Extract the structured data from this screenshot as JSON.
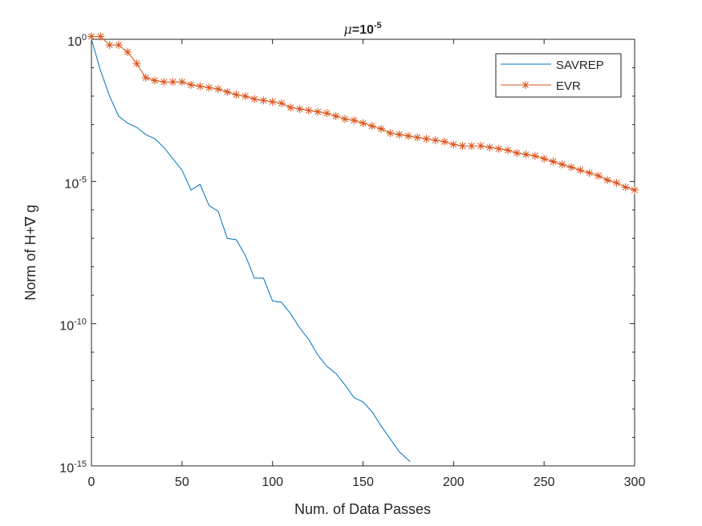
{
  "chart_data": {
    "type": "line",
    "title": {
      "mu": "μ",
      "eq": "=10",
      "exp": "-5"
    },
    "xlabel": "Num. of Data Passes",
    "ylabel": "Norm of H+∇ g",
    "xlim": [
      0,
      300
    ],
    "ylim_log10": [
      -15,
      0
    ],
    "xticks": [
      0,
      50,
      100,
      150,
      200,
      250,
      300
    ],
    "xtick_labels": [
      "0",
      "50",
      "100",
      "150",
      "200",
      "250",
      "300"
    ],
    "yticks_log10": [
      0,
      -5,
      -10,
      -15
    ],
    "ytick_labels": [
      {
        "base": "10",
        "exp": "0"
      },
      {
        "base": "10",
        "exp": "-5"
      },
      {
        "base": "10",
        "exp": "-10"
      },
      {
        "base": "10",
        "exp": "-15"
      }
    ],
    "legend_position": "top-right",
    "series": [
      {
        "name": "SAVREP",
        "color": "#0072BD",
        "marker": "none",
        "x": [
          0,
          5,
          10,
          15,
          20,
          25,
          30,
          35,
          40,
          45,
          50,
          55,
          60,
          65,
          70,
          75,
          80,
          85,
          90,
          95,
          100,
          105,
          110,
          115,
          120,
          125,
          130,
          135,
          140,
          145,
          150,
          155,
          160,
          165,
          170,
          176
        ],
        "log10_y": [
          0,
          -1.1,
          -2.0,
          -2.7,
          -2.95,
          -3.1,
          -3.35,
          -3.5,
          -3.8,
          -4.2,
          -4.6,
          -5.3,
          -5.1,
          -5.85,
          -6.05,
          -7.0,
          -7.05,
          -7.6,
          -8.4,
          -8.4,
          -9.2,
          -9.25,
          -9.65,
          -10.15,
          -10.55,
          -11.1,
          -11.5,
          -11.75,
          -12.15,
          -12.6,
          -12.75,
          -13.1,
          -13.6,
          -14.05,
          -14.5,
          -14.85
        ]
      },
      {
        "name": "EVR",
        "color": "#D95319",
        "marker": "asterisk",
        "x": [
          0,
          5,
          10,
          15,
          20,
          25,
          30,
          35,
          40,
          45,
          50,
          55,
          60,
          65,
          70,
          75,
          80,
          85,
          90,
          95,
          100,
          105,
          110,
          115,
          120,
          125,
          130,
          135,
          140,
          145,
          150,
          155,
          160,
          165,
          170,
          175,
          180,
          185,
          190,
          195,
          200,
          205,
          210,
          215,
          220,
          225,
          230,
          235,
          240,
          245,
          250,
          255,
          260,
          265,
          270,
          275,
          280,
          285,
          290,
          295,
          300
        ],
        "log10_y": [
          0.1,
          0.1,
          -0.2,
          -0.2,
          -0.45,
          -0.85,
          -1.35,
          -1.45,
          -1.5,
          -1.5,
          -1.5,
          -1.6,
          -1.65,
          -1.7,
          -1.75,
          -1.85,
          -1.95,
          -2.0,
          -2.1,
          -2.15,
          -2.2,
          -2.25,
          -2.4,
          -2.45,
          -2.5,
          -2.55,
          -2.6,
          -2.7,
          -2.8,
          -2.85,
          -2.95,
          -3.05,
          -3.15,
          -3.3,
          -3.35,
          -3.4,
          -3.45,
          -3.5,
          -3.55,
          -3.6,
          -3.7,
          -3.75,
          -3.75,
          -3.75,
          -3.8,
          -3.85,
          -3.9,
          -4.0,
          -4.05,
          -4.1,
          -4.2,
          -4.3,
          -4.4,
          -4.5,
          -4.6,
          -4.7,
          -4.8,
          -4.95,
          -5.05,
          -5.2,
          -5.3
        ]
      }
    ]
  }
}
